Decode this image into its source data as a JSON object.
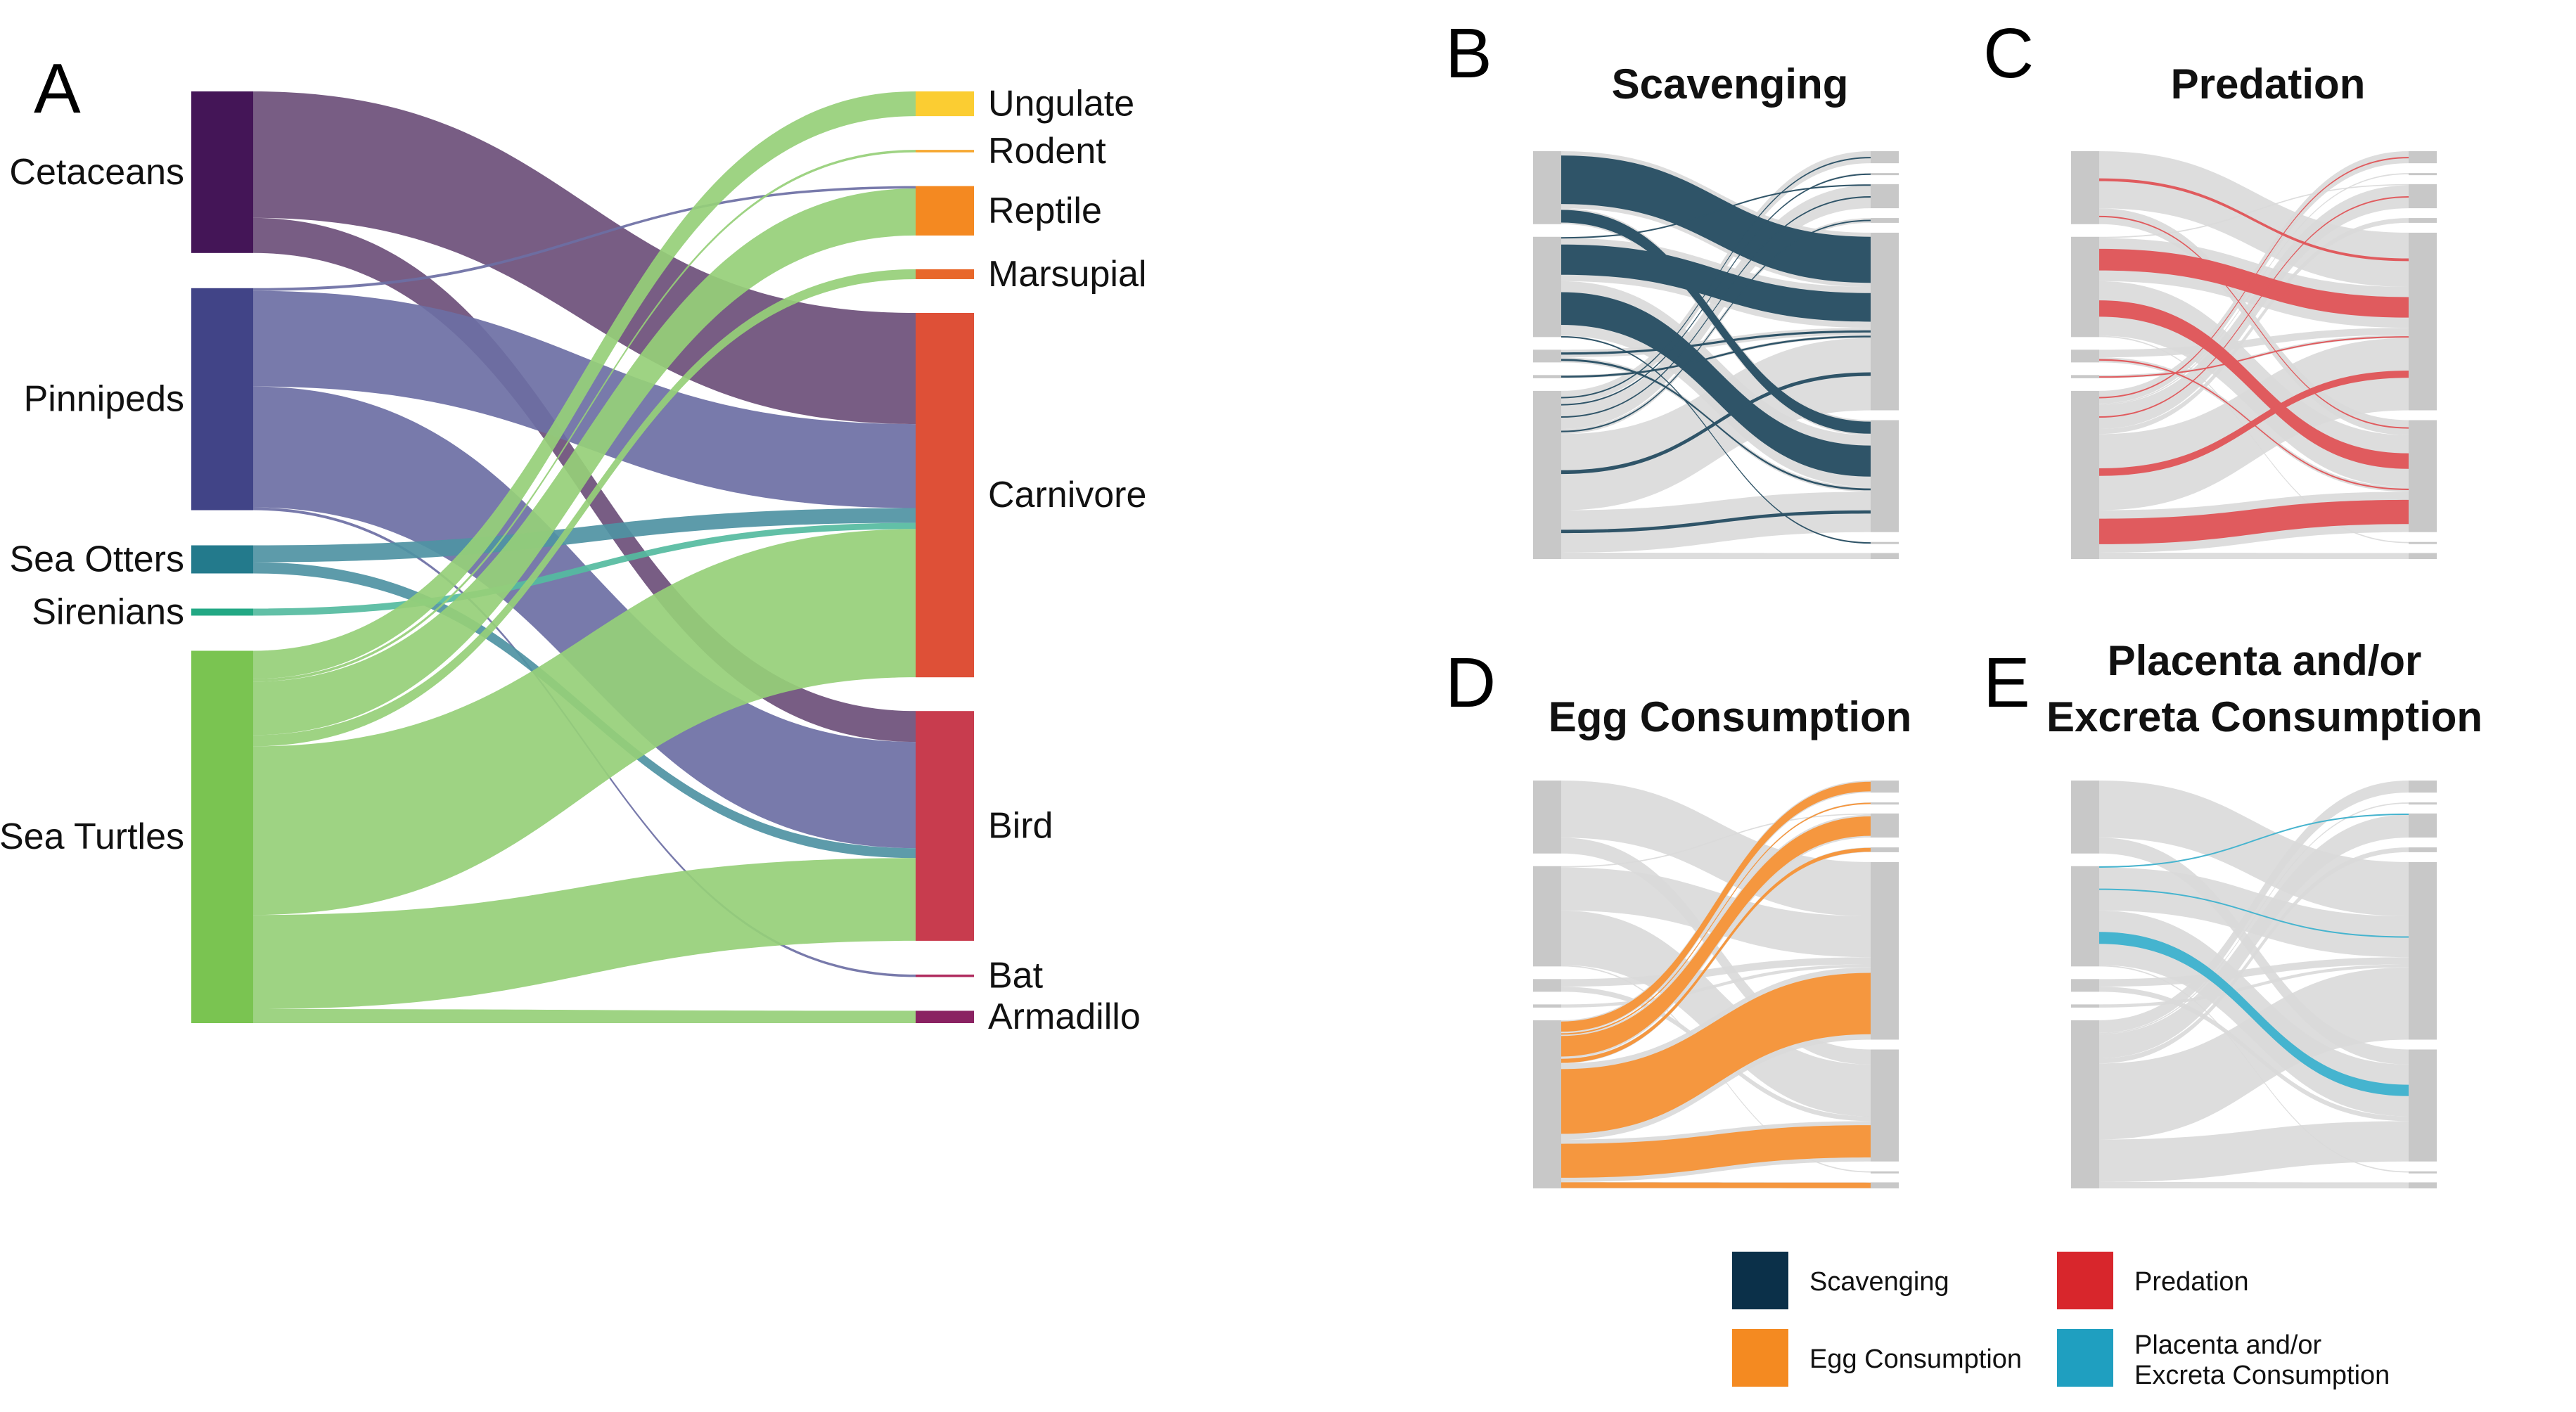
{
  "panels": {
    "A": {
      "letter": "A"
    },
    "B": {
      "letter": "B",
      "title": "Scavenging"
    },
    "C": {
      "letter": "C",
      "title": "Predation"
    },
    "D": {
      "letter": "D",
      "title": "Egg Consumption"
    },
    "E": {
      "letter": "E",
      "title_line1": "Placenta and/or",
      "title_line2": "Excreta Consumption"
    }
  },
  "sources": [
    {
      "name": "Cetaceans",
      "color": "#441557"
    },
    {
      "name": "Pinnipeds",
      "color": "#414487"
    },
    {
      "name": "Sea Otters",
      "color": "#237a8c"
    },
    {
      "name": "Sirenians",
      "color": "#22a884"
    },
    {
      "name": "Sea Turtles",
      "color": "#7ac451"
    }
  ],
  "targets": [
    {
      "name": "Ungulate",
      "color": "#fbcd32"
    },
    {
      "name": "Rodent",
      "color": "#f6a832"
    },
    {
      "name": "Reptile",
      "color": "#f48921"
    },
    {
      "name": "Marsupial",
      "color": "#e8672a"
    },
    {
      "name": "Carnivore",
      "color": "#de5037"
    },
    {
      "name": "Bird",
      "color": "#c83c4e"
    },
    {
      "name": "Bat",
      "color": "#b02b5e"
    },
    {
      "name": "Armadillo",
      "color": "#8a2262"
    }
  ],
  "links": [
    {
      "source": "Cetaceans",
      "target": "Carnivore",
      "value": 90
    },
    {
      "source": "Cetaceans",
      "target": "Bird",
      "value": 25
    },
    {
      "source": "Pinnipeds",
      "target": "Reptile",
      "value": 2
    },
    {
      "source": "Pinnipeds",
      "target": "Carnivore",
      "value": 68
    },
    {
      "source": "Pinnipeds",
      "target": "Bird",
      "value": 86
    },
    {
      "source": "Pinnipeds",
      "target": "Bat",
      "value": 2
    },
    {
      "source": "Sea Otters",
      "target": "Carnivore",
      "value": 12
    },
    {
      "source": "Sea Otters",
      "target": "Bird",
      "value": 8
    },
    {
      "source": "Sirenians",
      "target": "Carnivore",
      "value": 5
    },
    {
      "source": "Sea Turtles",
      "target": "Ungulate",
      "value": 20
    },
    {
      "source": "Sea Turtles",
      "target": "Rodent",
      "value": 2
    },
    {
      "source": "Sea Turtles",
      "target": "Reptile",
      "value": 38
    },
    {
      "source": "Sea Turtles",
      "target": "Marsupial",
      "value": 8
    },
    {
      "source": "Sea Turtles",
      "target": "Carnivore",
      "value": 120
    },
    {
      "source": "Sea Turtles",
      "target": "Bird",
      "value": 67
    },
    {
      "source": "Sea Turtles",
      "target": "Armadillo",
      "value": 10
    }
  ],
  "link_color_by_source": {
    "Cetaceans": "#6d4f7a",
    "Pinnipeds": "#6d6fa4",
    "Sea Otters": "#4f93a3",
    "Sirenians": "#55bba0",
    "Sea Turtles": "#96cf78"
  },
  "small_panel_colors": {
    "grey_node": "#c8c8c8",
    "grey_link": "#d9d9d9",
    "Scavenging": "#2f5468",
    "Predation": "#e05b5e",
    "Egg Consumption": "#f5973f",
    "Placenta and/or Excreta Consumption": "#45b4cf"
  },
  "legend": [
    {
      "label": "Scavenging",
      "color": "#0b3049"
    },
    {
      "label": "Predation",
      "color": "#d8262c"
    },
    {
      "label": "Egg Consumption",
      "color": "#f48a21"
    },
    {
      "label_line1": "Placenta and/or",
      "label_line2": "Excreta Consumption",
      "color": "#1f9fc0"
    }
  ]
}
